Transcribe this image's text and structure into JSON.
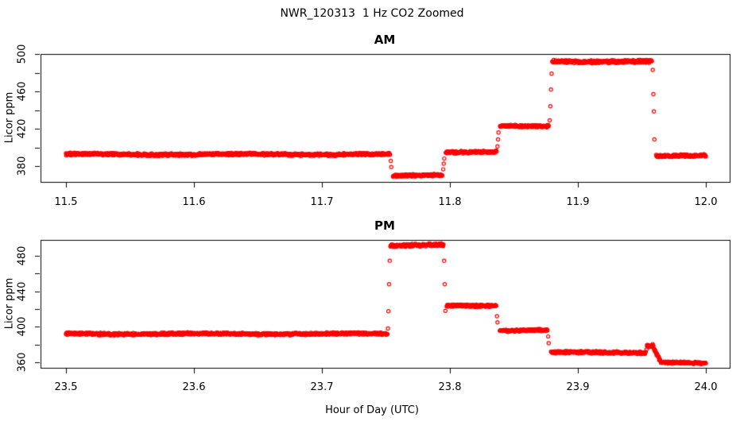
{
  "page": {
    "title": "NWR_120313  1 Hz CO2 Zoomed",
    "xlabel": "Hour of Day (UTC)",
    "background": "#ffffff",
    "axis_color": "#000000"
  },
  "chart_data": [
    {
      "type": "scatter",
      "panel_title": "AM",
      "ylabel": "Licor ppm",
      "marker": "open-circle",
      "color": "#ff0000",
      "sample_rate_hz": 1,
      "xlim": [
        11.48,
        12.02
      ],
      "ylim": [
        363,
        500
      ],
      "grid": false,
      "x_ticks": [
        {
          "value": 11.5,
          "label": "11.5"
        },
        {
          "value": 11.6,
          "label": "11.6"
        },
        {
          "value": 11.7,
          "label": "11.7"
        },
        {
          "value": 11.8,
          "label": "11.8"
        },
        {
          "value": 11.9,
          "label": "11.9"
        },
        {
          "value": 12.0,
          "label": "12.0"
        }
      ],
      "y_ticks": [
        {
          "value": 380,
          "label": "380"
        },
        {
          "value": 400,
          "label": ""
        },
        {
          "value": 420,
          "label": "420"
        },
        {
          "value": 440,
          "label": ""
        },
        {
          "value": 460,
          "label": "460"
        },
        {
          "value": 480,
          "label": ""
        },
        {
          "value": 500,
          "label": "500"
        }
      ],
      "segments": [
        {
          "x_start": 11.5,
          "x_end": 11.7532,
          "v_start": 392.5,
          "v_end": 392.5,
          "noise": 1.6
        },
        {
          "x_start": 11.7555,
          "x_end": 11.794,
          "v_start": 370.0,
          "v_end": 370.0,
          "noise": 1.5
        },
        {
          "x_start": 11.7968,
          "x_end": 11.8365,
          "v_start": 395.0,
          "v_end": 395.0,
          "noise": 1.5
        },
        {
          "x_start": 11.8392,
          "x_end": 11.8772,
          "v_start": 423.0,
          "v_end": 423.0,
          "noise": 1.5
        },
        {
          "x_start": 11.88,
          "x_end": 11.9578,
          "v_start": 492.0,
          "v_end": 492.0,
          "noise": 1.8
        },
        {
          "x_start": 11.9612,
          "x_end": 12.0,
          "v_start": 391.0,
          "v_end": 391.0,
          "noise": 1.6
        }
      ],
      "transition_points": [
        [
          11.7538,
          385.5
        ],
        [
          11.7542,
          379.0
        ],
        [
          11.7948,
          376.5
        ],
        [
          11.7952,
          382.5
        ],
        [
          11.7956,
          388.0
        ],
        [
          11.8372,
          401.0
        ],
        [
          11.8376,
          408.5
        ],
        [
          11.838,
          416.0
        ],
        [
          11.878,
          429.0
        ],
        [
          11.8785,
          444.0
        ],
        [
          11.879,
          462.0
        ],
        [
          11.8795,
          479.0
        ],
        [
          11.9585,
          483.0
        ],
        [
          11.959,
          457.0
        ],
        [
          11.9594,
          438.5
        ],
        [
          11.9598,
          408.5
        ]
      ]
    },
    {
      "type": "scatter",
      "panel_title": "PM",
      "ylabel": "Licor ppm",
      "marker": "open-circle",
      "color": "#ff0000",
      "sample_rate_hz": 1,
      "xlim": [
        23.48,
        24.02
      ],
      "ylim": [
        354,
        498
      ],
      "grid": false,
      "x_ticks": [
        {
          "value": 23.5,
          "label": "23.5"
        },
        {
          "value": 23.6,
          "label": "23.6"
        },
        {
          "value": 23.7,
          "label": "23.7"
        },
        {
          "value": 23.8,
          "label": "23.8"
        },
        {
          "value": 23.9,
          "label": "23.9"
        },
        {
          "value": 24.0,
          "label": "24.0"
        }
      ],
      "y_ticks": [
        {
          "value": 360,
          "label": "360"
        },
        {
          "value": 380,
          "label": ""
        },
        {
          "value": 400,
          "label": "400"
        },
        {
          "value": 420,
          "label": ""
        },
        {
          "value": 440,
          "label": "440"
        },
        {
          "value": 460,
          "label": ""
        },
        {
          "value": 480,
          "label": "480"
        }
      ],
      "segments": [
        {
          "x_start": 23.5,
          "x_end": 23.7512,
          "v_start": 392.0,
          "v_end": 392.0,
          "noise": 1.6
        },
        {
          "x_start": 23.7535,
          "x_end": 23.795,
          "v_start": 492.0,
          "v_end": 492.0,
          "noise": 1.8
        },
        {
          "x_start": 23.7975,
          "x_end": 23.8362,
          "v_start": 424.0,
          "v_end": 424.0,
          "noise": 1.5
        },
        {
          "x_start": 23.839,
          "x_end": 23.8762,
          "v_start": 396.0,
          "v_end": 396.0,
          "noise": 1.5
        },
        {
          "x_start": 23.879,
          "x_end": 23.953,
          "v_start": 371.0,
          "v_end": 371.0,
          "noise": 1.6
        },
        {
          "x_start": 23.954,
          "x_end": 23.959,
          "v_start": 378.5,
          "v_end": 378.5,
          "noise": 1.4
        },
        {
          "x_start": 23.9595,
          "x_end": 23.965,
          "v_start": 375.0,
          "v_end": 360.5,
          "noise": 1.2
        },
        {
          "x_start": 23.965,
          "x_end": 24.0,
          "v_start": 359.5,
          "v_end": 359.5,
          "noise": 1.3
        }
      ],
      "transition_points": [
        [
          23.7516,
          398.0
        ],
        [
          23.752,
          417.5
        ],
        [
          23.7525,
          448.0
        ],
        [
          23.753,
          474.5
        ],
        [
          23.7955,
          474.5
        ],
        [
          23.796,
          448.0
        ],
        [
          23.7965,
          418.0
        ],
        [
          23.8368,
          412.0
        ],
        [
          23.8372,
          405.0
        ],
        [
          23.8768,
          389.0
        ],
        [
          23.8772,
          381.5
        ],
        [
          23.9536,
          374.5
        ],
        [
          23.9585,
          380.5
        ],
        [
          23.96,
          374.0
        ],
        [
          23.9615,
          368.0
        ],
        [
          23.9635,
          362.5
        ]
      ]
    }
  ]
}
